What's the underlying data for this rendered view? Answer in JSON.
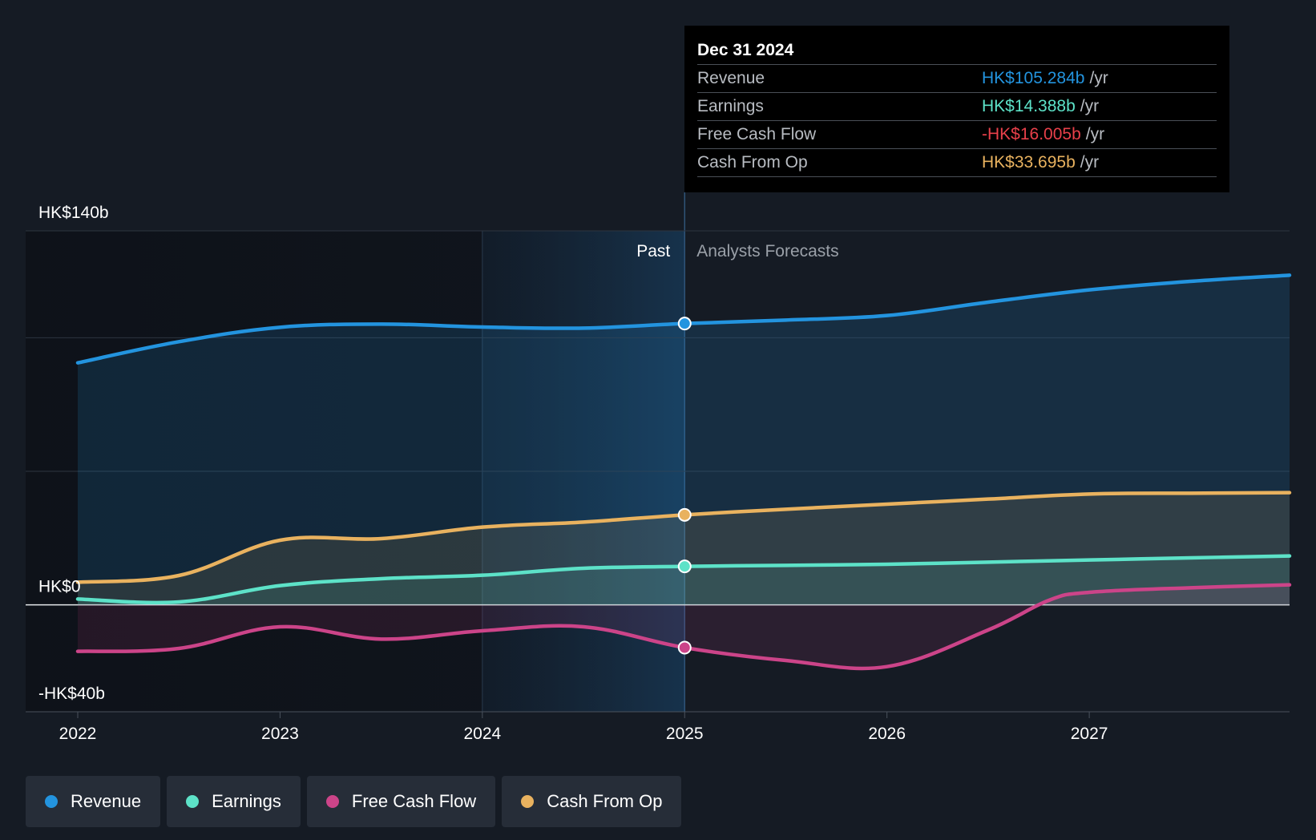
{
  "tooltip": {
    "date": "Dec 31 2024",
    "rows": [
      {
        "label": "Revenue",
        "value": "HK$105.284b",
        "unit": "/yr",
        "color": "#2394df"
      },
      {
        "label": "Earnings",
        "value": "HK$14.388b",
        "unit": "/yr",
        "color": "#5de2c8"
      },
      {
        "label": "Free Cash Flow",
        "value": "-HK$16.005b",
        "unit": "/yr",
        "color": "#e8404a"
      },
      {
        "label": "Cash From Op",
        "value": "HK$33.695b",
        "unit": "/yr",
        "color": "#e9b25f"
      }
    ]
  },
  "labels": {
    "past": "Past",
    "forecast": "Analysts Forecasts"
  },
  "legend": [
    {
      "label": "Revenue",
      "color": "#2394df"
    },
    {
      "label": "Earnings",
      "color": "#5de2c8"
    },
    {
      "label": "Free Cash Flow",
      "color": "#cc4489"
    },
    {
      "label": "Cash From Op",
      "color": "#e9b25f"
    }
  ],
  "chart_data": {
    "type": "line",
    "title": "",
    "xlabel": "",
    "ylabel": "",
    "xlim": [
      2022.0,
      2027.99
    ],
    "ylim": [
      -40,
      140
    ],
    "x_ticks": [
      2022,
      2023,
      2024,
      2025,
      2026,
      2027
    ],
    "x_tick_labels": [
      "2022",
      "2023",
      "2024",
      "2025",
      "2026",
      "2027"
    ],
    "y_ticks": [
      140,
      0,
      -40
    ],
    "y_tick_labels": [
      "HK$140b",
      "HK$0",
      "-HK$40b"
    ],
    "grid_values": [
      140,
      100,
      50,
      0,
      -40
    ],
    "past_end": 2025.0,
    "highlight_start": 2024.0,
    "highlight_date": 2025.0,
    "series": [
      {
        "name": "Revenue",
        "color": "#2394df",
        "points": [
          [
            2022.0,
            90.6
          ],
          [
            2022.5,
            98.5
          ],
          [
            2023.0,
            103.9
          ],
          [
            2023.5,
            105.1
          ],
          [
            2024.0,
            104.0
          ],
          [
            2024.5,
            103.6
          ],
          [
            2025.0,
            105.3
          ],
          [
            2025.5,
            106.6
          ],
          [
            2026.0,
            108.3
          ],
          [
            2026.5,
            113.3
          ],
          [
            2027.0,
            117.9
          ],
          [
            2027.5,
            121.1
          ],
          [
            2027.99,
            123.4
          ]
        ]
      },
      {
        "name": "Earnings",
        "color": "#5de2c8",
        "points": [
          [
            2022.0,
            2.2
          ],
          [
            2022.5,
            1.1
          ],
          [
            2023.0,
            7.2
          ],
          [
            2023.5,
            9.8
          ],
          [
            2024.0,
            11.1
          ],
          [
            2024.5,
            13.7
          ],
          [
            2025.0,
            14.4
          ],
          [
            2025.5,
            14.8
          ],
          [
            2026.0,
            15.2
          ],
          [
            2026.5,
            16.0
          ],
          [
            2027.0,
            16.8
          ],
          [
            2027.5,
            17.6
          ],
          [
            2027.99,
            18.3
          ]
        ]
      },
      {
        "name": "Free Cash Flow",
        "color": "#cc4489",
        "points": [
          [
            2022.0,
            -17.4
          ],
          [
            2022.5,
            -16.3
          ],
          [
            2023.0,
            -8.2
          ],
          [
            2023.5,
            -12.8
          ],
          [
            2024.0,
            -9.7
          ],
          [
            2024.5,
            -8.2
          ],
          [
            2025.0,
            -16.0
          ],
          [
            2025.5,
            -20.8
          ],
          [
            2026.0,
            -23.1
          ],
          [
            2026.5,
            -9.4
          ],
          [
            2026.8,
            1.7
          ],
          [
            2027.0,
            4.7
          ],
          [
            2027.5,
            6.4
          ],
          [
            2027.99,
            7.5
          ]
        ]
      },
      {
        "name": "Cash From Op",
        "color": "#e9b25f",
        "points": [
          [
            2022.0,
            8.5
          ],
          [
            2022.5,
            11.0
          ],
          [
            2023.0,
            24.2
          ],
          [
            2023.5,
            24.8
          ],
          [
            2024.0,
            29.1
          ],
          [
            2024.5,
            31.0
          ],
          [
            2025.0,
            33.7
          ],
          [
            2025.5,
            35.8
          ],
          [
            2026.0,
            37.7
          ],
          [
            2026.5,
            39.6
          ],
          [
            2027.0,
            41.5
          ],
          [
            2027.5,
            41.8
          ],
          [
            2027.99,
            42.0
          ]
        ]
      }
    ]
  }
}
